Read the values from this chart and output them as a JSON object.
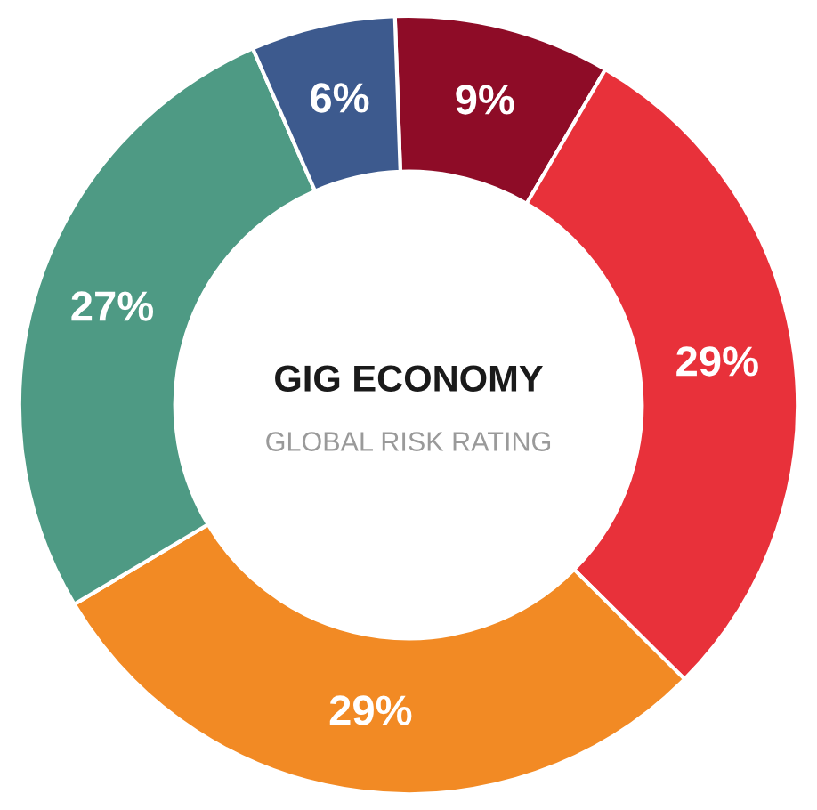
{
  "chart_data": {
    "type": "donut",
    "title": "GIG ECONOMY",
    "subtitle": "GLOBAL RISK RATING",
    "categories": [
      null,
      null,
      null,
      null,
      null
    ],
    "values": [
      9,
      29,
      29,
      27,
      6
    ],
    "colors": [
      "#8e0c27",
      "#e8313a",
      "#f28a24",
      "#4e9a84",
      "#3d5a8e"
    ],
    "value_labels": [
      "9%",
      "29%",
      "29%",
      "27%",
      "6%"
    ],
    "legend": false
  }
}
